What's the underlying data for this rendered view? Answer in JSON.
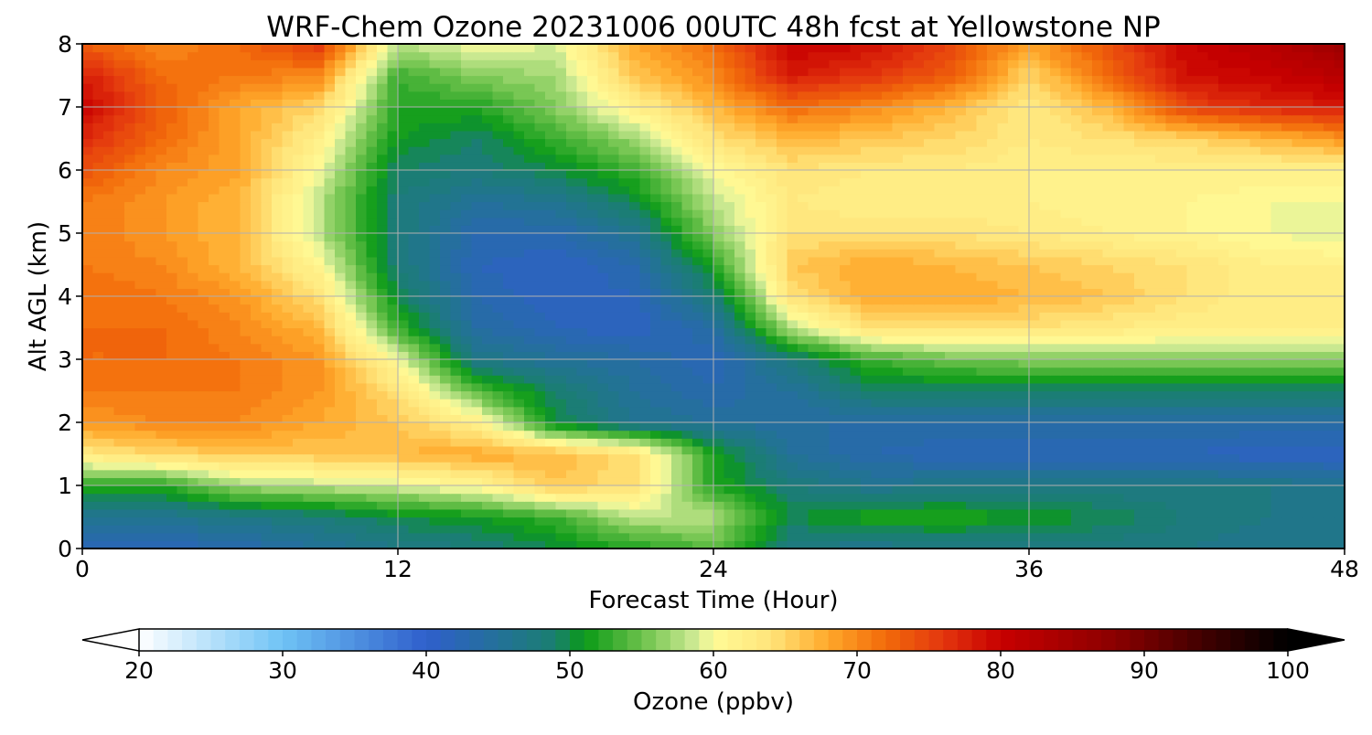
{
  "chart_data": {
    "type": "heatmap",
    "title": "WRF-Chem Ozone  20231006 00UTC 48h fcst at Yellowstone NP",
    "xlabel": "Forecast Time (Hour)",
    "ylabel": "Alt AGL (km)",
    "xlim": [
      0,
      48
    ],
    "ylim": [
      0,
      8
    ],
    "xticks": [
      "0",
      "12",
      "24",
      "36",
      "48"
    ],
    "yticks": [
      "0",
      "1",
      "2",
      "3",
      "4",
      "5",
      "6",
      "7",
      "8"
    ],
    "grid": true,
    "x": [
      0,
      3,
      6,
      9,
      12,
      15,
      18,
      21,
      24,
      27,
      30,
      33,
      36,
      39,
      42,
      45,
      48
    ],
    "y": [
      0,
      0.5,
      1,
      1.5,
      2,
      2.5,
      3,
      3.5,
      4,
      4.5,
      5,
      5.5,
      6,
      6.5,
      7,
      7.5,
      8
    ],
    "z": [
      [
        42,
        42,
        43,
        45,
        47,
        48,
        50,
        52,
        54,
        47,
        46,
        47,
        47,
        47,
        47,
        46,
        46
      ],
      [
        46,
        46,
        47,
        48,
        50,
        51,
        53,
        58,
        58,
        50,
        52,
        52,
        51,
        50,
        48,
        47,
        47
      ],
      [
        52,
        52,
        57,
        58,
        59,
        61,
        66,
        64,
        52,
        48,
        46,
        47,
        47,
        47,
        47,
        47,
        46
      ],
      [
        63,
        65,
        66,
        66,
        67,
        68,
        67,
        64,
        52,
        45,
        43,
        42,
        42,
        42,
        42,
        41,
        41
      ],
      [
        69,
        70,
        70,
        68,
        66,
        62,
        50,
        46,
        45,
        44,
        44,
        44,
        44,
        44,
        44,
        44,
        44
      ],
      [
        71,
        71,
        71,
        69,
        64,
        54,
        49,
        45,
        43,
        45,
        49,
        49,
        49,
        49,
        49,
        49,
        49
      ],
      [
        72,
        72,
        71,
        69,
        60,
        47,
        45,
        44,
        42,
        48,
        53,
        55,
        56,
        56,
        56,
        56,
        56
      ],
      [
        72,
        72,
        70,
        67,
        53,
        44,
        42,
        41,
        44,
        58,
        64,
        64,
        64,
        63,
        62,
        62,
        62
      ],
      [
        72,
        71,
        69,
        64,
        50,
        43,
        41,
        42,
        48,
        64,
        68,
        68,
        67,
        66,
        64,
        62,
        62
      ],
      [
        71,
        70,
        67,
        61,
        48,
        42,
        41,
        43,
        52,
        66,
        68,
        67,
        66,
        65,
        64,
        62,
        62
      ],
      [
        71,
        69,
        67,
        58,
        48,
        43,
        43,
        46,
        56,
        64,
        64,
        64,
        63,
        62,
        61,
        60,
        59
      ],
      [
        71,
        69,
        67,
        58,
        48,
        45,
        46,
        50,
        58,
        63,
        62,
        62,
        62,
        61,
        61,
        60,
        60
      ],
      [
        74,
        70,
        68,
        60,
        49,
        48,
        50,
        53,
        60,
        64,
        63,
        63,
        62,
        62,
        62,
        62,
        62
      ],
      [
        77,
        72,
        68,
        62,
        51,
        49,
        53,
        57,
        64,
        67,
        66,
        65,
        63,
        64,
        65,
        67,
        69
      ],
      [
        80,
        73,
        68,
        65,
        52,
        52,
        56,
        62,
        67,
        72,
        70,
        67,
        63,
        67,
        75,
        77,
        78
      ],
      [
        78,
        72,
        71,
        70,
        53,
        56,
        57,
        66,
        70,
        78,
        76,
        73,
        65,
        72,
        79,
        80,
        82
      ],
      [
        73,
        70,
        72,
        76,
        58,
        60,
        59,
        68,
        72,
        80,
        79,
        75,
        68,
        74,
        80,
        82,
        86
      ]
    ],
    "colorbar": {
      "label": "Ozone  (ppbv)",
      "min": 20,
      "max": 100,
      "step": 1,
      "ticks": [
        "20",
        "30",
        "40",
        "50",
        "60",
        "70",
        "80",
        "90",
        "100"
      ],
      "extend": "both",
      "colors": {
        "20": "#ffffff",
        "30": "#6fc3f5",
        "40": "#2f5fcc",
        "49": "#1a7f70",
        "51": "#0a9a16",
        "55": "#6bc14a",
        "59": "#d6ee9a",
        "60": "#fffb96",
        "64": "#ffe47a",
        "68": "#ffa82a",
        "72": "#f26a0a",
        "76": "#e3360e",
        "80": "#c80000",
        "88": "#8a0000",
        "95": "#360000",
        "100": "#000000"
      }
    }
  }
}
